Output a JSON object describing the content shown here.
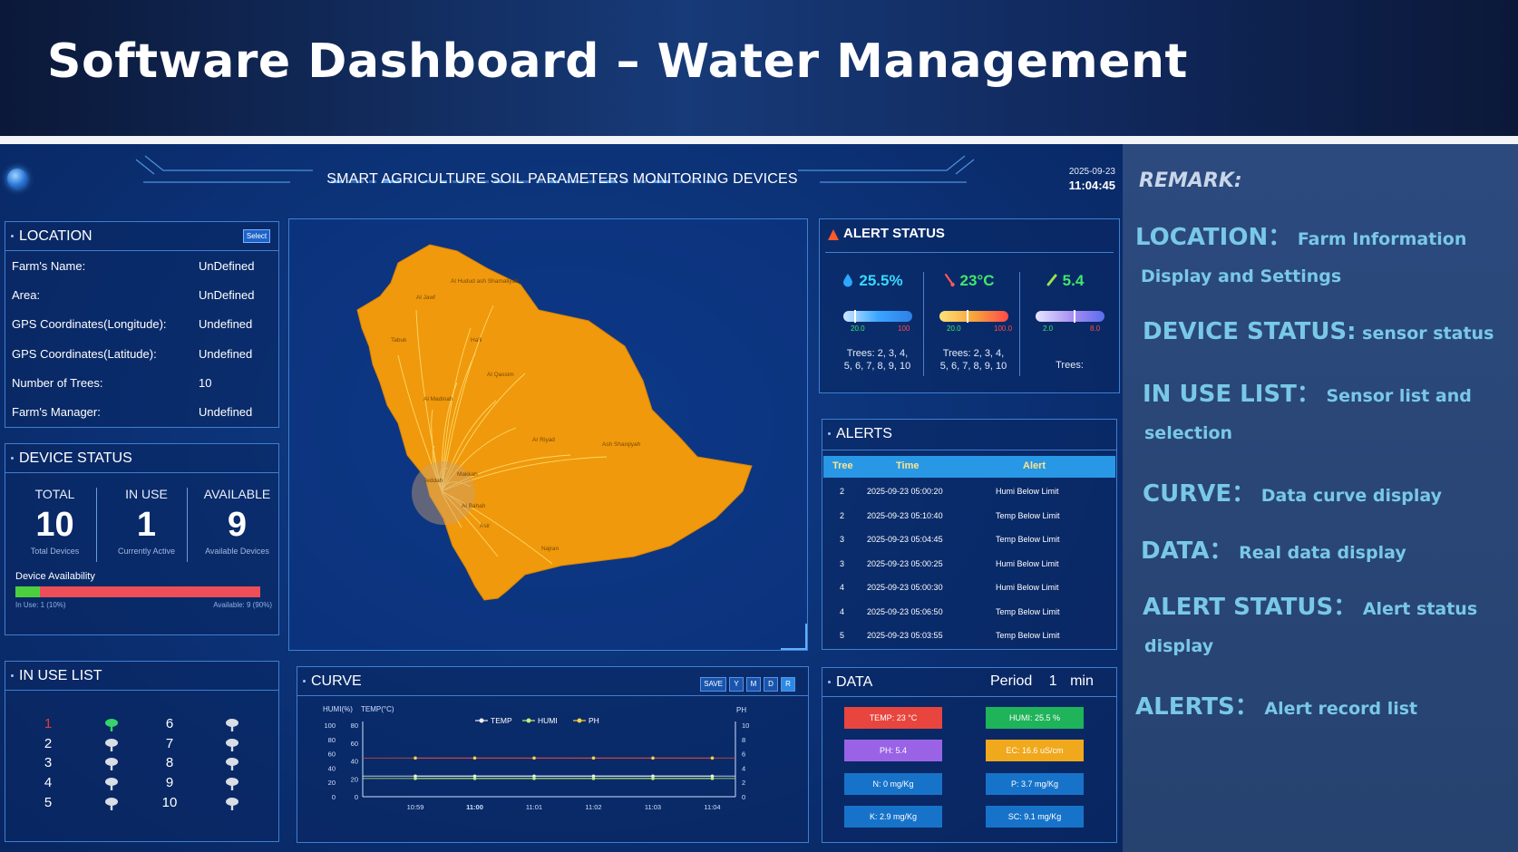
{
  "banner": {
    "title": "Software Dashboard – Water Management"
  },
  "header": {
    "device_title": "SMART AGRICULTURE SOIL PARAMETERS MONITORING DEVICES",
    "date": "2025-09-23",
    "time": "11:04:45"
  },
  "location": {
    "title": "LOCATION",
    "select_label": "Select",
    "rows": [
      {
        "label": "Farm's Name:",
        "value": "UnDefined"
      },
      {
        "label": "Area:",
        "value": "UnDefined"
      },
      {
        "label": "GPS Coordinates(Longitude):",
        "value": "Undefined"
      },
      {
        "label": "GPS Coordinates(Latitude):",
        "value": "Undefined"
      },
      {
        "label": "Number of Trees:",
        "value": "10"
      },
      {
        "label": "Farm's Manager:",
        "value": "Undefined"
      }
    ]
  },
  "device_status": {
    "title": "DEVICE STATUS",
    "total": {
      "label": "TOTAL",
      "value": "10",
      "sub": "Total Devices"
    },
    "in_use": {
      "label": "IN USE",
      "value": "1",
      "sub": "Currently Active"
    },
    "available": {
      "label": "AVAILABLE",
      "value": "9",
      "sub": "Available Devices"
    },
    "availability_label": "Device Availability",
    "in_use_fraction": 0.1,
    "in_use_text": "In Use: 1 (10%)",
    "available_text": "Available: 9 (90%)",
    "colors": {
      "in_use": "#4ccf3f",
      "available": "#ee4e57"
    }
  },
  "in_use_list": {
    "title": "IN USE LIST",
    "left": [
      "1",
      "2",
      "3",
      "4",
      "5"
    ],
    "right": [
      "6",
      "7",
      "8",
      "9",
      "10"
    ],
    "active": [
      "1"
    ],
    "active_color": "#e53a3a",
    "icon": "tree-icon"
  },
  "map": {
    "labels": [
      "Al Jawf",
      "Al Hudud ash Shamaliyah",
      "Tabuk",
      "Ha'il",
      "Al Qassim",
      "Al Madinah",
      "Ar Riyad",
      "Ash Sharqiyah",
      "Jeddah",
      "Makkah",
      "Al Bahah",
      "Asir",
      "Najran"
    ],
    "land_color": "#f0990c"
  },
  "curve": {
    "title": "CURVE",
    "buttons": [
      "SAVE",
      "Y",
      "M",
      "D",
      "R"
    ],
    "active_button": "R",
    "left_axis_label_1": "HUMI(%)",
    "left_axis_label_2": "TEMP(°C)",
    "right_axis_label": "PH",
    "legend": [
      "TEMP",
      "HUMI",
      "PH"
    ]
  },
  "chart_data": {
    "type": "line",
    "x": [
      "10:59",
      "11:00",
      "11:01",
      "11:02",
      "11:03",
      "11:04"
    ],
    "humi_ticks": [
      "100",
      "80",
      "60",
      "40",
      "20",
      "0"
    ],
    "temp_ticks": [
      "80",
      "60",
      "40",
      "20",
      "0"
    ],
    "ph_ticks": [
      "10",
      "8",
      "6",
      "4",
      "2",
      "0"
    ],
    "series": [
      {
        "name": "TEMP",
        "axis": "temp",
        "values": [
          23,
          23,
          23,
          23,
          23,
          23
        ],
        "color": "#f1f1f1"
      },
      {
        "name": "HUMI",
        "axis": "humi",
        "values": [
          25.5,
          25.5,
          25.5,
          25.5,
          25.5,
          25.5
        ],
        "color": "#bdf27a"
      },
      {
        "name": "PH",
        "axis": "ph",
        "values": [
          5.4,
          5.4,
          5.4,
          5.4,
          5.4,
          5.4
        ],
        "color": "#f2d14a"
      }
    ],
    "ylim": {
      "humi": [
        0,
        100
      ],
      "temp": [
        0,
        80
      ],
      "ph": [
        0,
        10
      ]
    },
    "bold_tick": "11:00"
  },
  "alert_status": {
    "title": "ALERT STATUS",
    "items": [
      {
        "icon": "water-drop-icon",
        "value": "25.5%",
        "min": "20.0",
        "max": "100",
        "color": "#38d9ff",
        "min_color": "#3fe86a",
        "max_color": "#ff4a4a",
        "trees_line1": "Trees: 2, 3, 4,",
        "trees_line2": "5, 6, 7, 8, 9, 10"
      },
      {
        "icon": "thermometer-icon",
        "value": "23°C",
        "min": "20.0",
        "max": "100.0",
        "color": "#3fe86a",
        "min_color": "#3fe86a",
        "max_color": "#ff4a4a",
        "trees_line1": "Trees: 2, 3, 4,",
        "trees_line2": "5, 6, 7, 8, 9, 10"
      },
      {
        "icon": "test-tube-icon",
        "value": "5.4",
        "min": "2.0",
        "max": "8.0",
        "color": "#3fe86a",
        "min_color": "#3fe86a",
        "max_color": "#ff4a4a",
        "trees_line1": "Trees:",
        "trees_line2": ""
      }
    ]
  },
  "alerts": {
    "title": "ALERTS",
    "columns": [
      "Tree",
      "Time",
      "Alert"
    ],
    "rows": [
      {
        "tree": "2",
        "time": "2025-09-23 05:00:20",
        "alert": "Humi Below Limit"
      },
      {
        "tree": "2",
        "time": "2025-09-23 05:10:40",
        "alert": "Temp Below Limit"
      },
      {
        "tree": "3",
        "time": "2025-09-23 05:04:45",
        "alert": "Temp Below Limit"
      },
      {
        "tree": "3",
        "time": "2025-09-23 05:00:25",
        "alert": "Humi Below Limit"
      },
      {
        "tree": "4",
        "time": "2025-09-23 05:00:30",
        "alert": "Humi Below Limit"
      },
      {
        "tree": "4",
        "time": "2025-09-23 05:06:50",
        "alert": "Temp Below Limit"
      },
      {
        "tree": "5",
        "time": "2025-09-23 05:03:55",
        "alert": "Temp Below Limit"
      }
    ]
  },
  "data_panel": {
    "title": "DATA",
    "period_label": "Period",
    "period_value": "1",
    "period_unit": "min",
    "boxes": [
      {
        "text": "TEMP:  23 °C",
        "color": "#e8453e"
      },
      {
        "text": "HUMI:  25.5 %",
        "color": "#1fb35a"
      },
      {
        "text": "PH:  5.4",
        "color": "#9a63e6"
      },
      {
        "text": "EC:  16.6 uS/cm",
        "color": "#f0a81c"
      },
      {
        "text": "N:  0 mg/Kg",
        "color": "#1773c9"
      },
      {
        "text": "P:  3.7 mg/Kg",
        "color": "#1773c9"
      },
      {
        "text": "K:  2.9 mg/Kg",
        "color": "#1773c9"
      },
      {
        "text": "SC:  9.1 mg/Kg",
        "color": "#1773c9"
      }
    ]
  },
  "remark": {
    "title": "REMARK:",
    "lines": [
      {
        "key": "LOCATION：",
        "val": "Farm Information"
      },
      {
        "key": "",
        "val": "Display and Settings"
      },
      {
        "key": "DEVICE STATUS:",
        "val": " sensor status"
      },
      {
        "key": "IN USE LIST：",
        "val": "Sensor list and"
      },
      {
        "key": "",
        "val": "selection"
      },
      {
        "key": "CURVE：",
        "val": "Data curve display"
      },
      {
        "key": "DATA：",
        "val": "Real data display"
      },
      {
        "key": "ALERT STATUS：",
        "val": "Alert status"
      },
      {
        "key": "",
        "val": "display"
      },
      {
        "key": "ALERTS：",
        "val": "Alert record list"
      }
    ]
  }
}
